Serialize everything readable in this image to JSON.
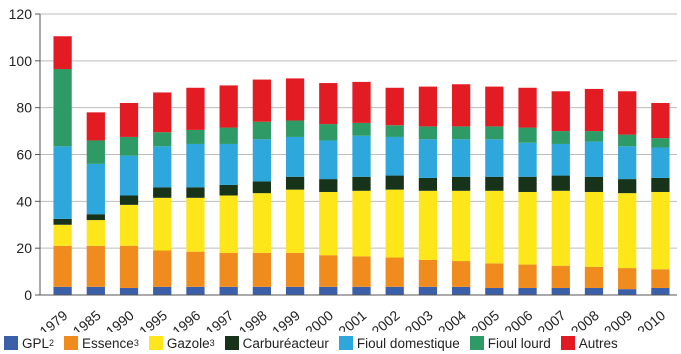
{
  "chart_data": {
    "type": "bar",
    "stacked": true,
    "title": "",
    "xlabel": "",
    "ylabel": "",
    "ylim": [
      0,
      120
    ],
    "yticks": [
      0,
      20,
      40,
      60,
      80,
      100,
      120
    ],
    "grid": "horizontal",
    "legend_position": "bottom",
    "categories": [
      "1979",
      "1985",
      "1990",
      "1995",
      "1996",
      "1997",
      "1998",
      "1999",
      "2000",
      "2001",
      "2002",
      "2003",
      "2004",
      "2005",
      "2006",
      "2007",
      "2008",
      "2009",
      "2010"
    ],
    "series": [
      {
        "name": "GPL",
        "sup": "2",
        "color": "#3b5fa8",
        "values": [
          3.5,
          3.5,
          3,
          3.5,
          3.5,
          3.5,
          3.5,
          3.5,
          3.5,
          3.5,
          3.5,
          3.5,
          3.5,
          3,
          3,
          3,
          3,
          2.5,
          3
        ]
      },
      {
        "name": "Essence",
        "sup": "3",
        "color": "#f08c1e",
        "values": [
          17.5,
          17.5,
          18,
          15.5,
          15,
          14.5,
          14.5,
          14.5,
          13.5,
          13,
          12.5,
          11.5,
          11,
          10.5,
          10,
          9.5,
          9,
          9,
          8
        ]
      },
      {
        "name": "Gazole",
        "sup": "3",
        "color": "#fde61a",
        "values": [
          9,
          11,
          17.5,
          22.5,
          23,
          24.5,
          25.5,
          27,
          27,
          28,
          29,
          29.5,
          30,
          31,
          31,
          32,
          32,
          32,
          33
        ]
      },
      {
        "name": "Carburéacteur",
        "sup": "",
        "color": "#17331a",
        "values": [
          2.5,
          2.5,
          4,
          4.5,
          4.5,
          4.5,
          5,
          5.5,
          5.5,
          6,
          6,
          5.5,
          6,
          6,
          6.5,
          6.5,
          6.5,
          6,
          6
        ]
      },
      {
        "name": "Fioul domestique",
        "sup": "",
        "color": "#2ea7dd",
        "values": [
          31,
          21.5,
          17,
          17.5,
          18.5,
          17.5,
          18,
          17,
          16.5,
          17.5,
          16.5,
          16.5,
          16,
          16,
          14.5,
          13.5,
          15,
          14,
          13
        ]
      },
      {
        "name": "Fioul lourd",
        "sup": "",
        "color": "#2e9b66",
        "values": [
          33,
          10,
          8,
          6,
          6,
          7,
          7.5,
          7,
          7,
          5.5,
          5,
          5.5,
          5.5,
          5.5,
          6.5,
          5.5,
          4.5,
          5,
          4
        ]
      },
      {
        "name": "Autres",
        "sup": "",
        "color": "#e31b23",
        "values": [
          14,
          12,
          14.5,
          17,
          18,
          18,
          18,
          18,
          17.5,
          17.5,
          16,
          17,
          18,
          17,
          17,
          17,
          18,
          18.5,
          15
        ]
      }
    ]
  }
}
